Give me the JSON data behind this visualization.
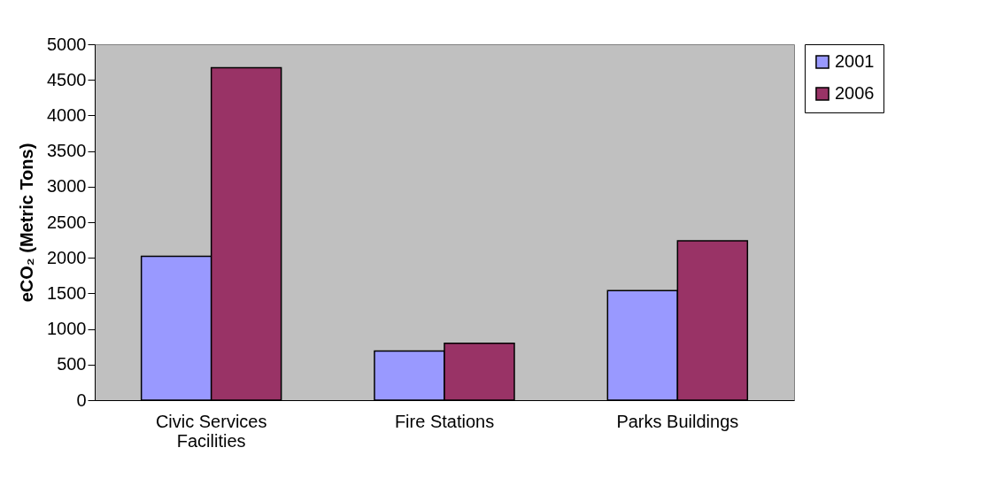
{
  "chart_data": {
    "type": "bar",
    "ylabel": "eCO₂ (Metric Tons)",
    "categories": [
      "Civic Services Facilities",
      "Fire Stations",
      "Parks Buildings"
    ],
    "series": [
      {
        "name": "2001",
        "color": "#9999ff",
        "values": [
          2020,
          690,
          1540
        ]
      },
      {
        "name": "2006",
        "color": "#993366",
        "values": [
          4670,
          800,
          2240
        ]
      }
    ],
    "ylim": [
      0,
      5000
    ],
    "yticks": [
      0,
      500,
      1000,
      1500,
      2000,
      2500,
      3000,
      3500,
      4000,
      4500,
      5000
    ],
    "grid": false,
    "legend": "right"
  }
}
